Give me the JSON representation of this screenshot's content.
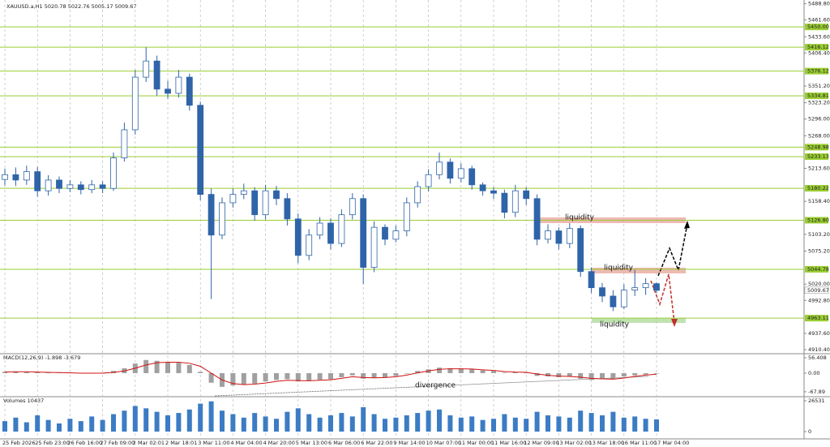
{
  "header": {
    "title": "XAUUSD.a,H1  5020.78 5022.76 5005.17 5009.67"
  },
  "chart_data": [
    {
      "type": "candlestick",
      "color": "#2f64a8",
      "x": [
        "25 Feb 2026",
        null,
        null,
        "25 Feb 23:00",
        null,
        null,
        "26 Feb 16:00",
        null,
        null,
        "27 Feb 09:00",
        null,
        null,
        "2 Mar 02:01",
        null,
        null,
        "2 Mar 18:01",
        null,
        null,
        "3 Mar 11:00",
        null,
        null,
        "4 Mar 04:00",
        null,
        null,
        "4 Mar 20:00",
        null,
        null,
        "5 Mar 13:00",
        null,
        null,
        "6 Mar 06:00",
        null,
        null,
        "6 Mar 22:00",
        null,
        null,
        "9 Mar 14:00",
        null,
        null,
        "10 Mar 07:00",
        null,
        null,
        "11 Mar 00:00",
        null,
        null,
        "11 Mar 16:00",
        null,
        null,
        "12 Mar 09:00",
        null,
        null,
        "13 Mar 02:00",
        null,
        null,
        "13 Mar 18:00",
        null,
        null,
        "16 Mar 11:00",
        null,
        null,
        "17 Mar 04:00"
      ],
      "open": [
        5195,
        5203,
        5194,
        5208,
        5176,
        5194,
        5180,
        5186,
        5178,
        5186,
        5180,
        5231,
        5278,
        5366,
        5393,
        5346,
        5339,
        5366,
        5319,
        5170,
        5102,
        5156,
        5170,
        5176,
        5136,
        5176,
        5163,
        5129,
        5068,
        5102,
        5122,
        5088,
        5136,
        5163,
        5048,
        5115,
        5095,
        5109,
        5156,
        5183,
        5203,
        5224,
        5197,
        5213,
        5186,
        5176,
        5172,
        5140,
        5176,
        5163,
        5095,
        5109,
        5088,
        5113,
        5041,
        5014,
        5000,
        4982,
        5010,
        5014,
        5020.78
      ],
      "high": [
        5213,
        5215,
        5218,
        5216,
        5202,
        5200,
        5194,
        5192,
        5194,
        5192,
        5240,
        5290,
        5378,
        5416,
        5402,
        5360,
        5378,
        5372,
        5325,
        5180,
        5165,
        5180,
        5188,
        5182,
        5186,
        5184,
        5172,
        5138,
        5112,
        5132,
        5130,
        5145,
        5172,
        5170,
        5125,
        5120,
        5118,
        5165,
        5192,
        5212,
        5240,
        5230,
        5222,
        5218,
        5190,
        5182,
        5178,
        5186,
        5182,
        5170,
        5120,
        5115,
        5122,
        5118,
        5048,
        5022,
        5010,
        5020,
        5044,
        5030,
        5022.76
      ],
      "low": [
        5185,
        5184,
        5186,
        5166,
        5168,
        5172,
        5174,
        5170,
        5172,
        5172,
        5176,
        5225,
        5270,
        5358,
        5335,
        5330,
        5332,
        5310,
        5160,
        4995,
        5095,
        5148,
        5162,
        5126,
        5128,
        5152,
        5118,
        5055,
        5060,
        5095,
        5078,
        5082,
        5128,
        5020,
        5040,
        5085,
        5090,
        5100,
        5148,
        5175,
        5195,
        5188,
        5190,
        5178,
        5168,
        5162,
        5130,
        5132,
        5152,
        5085,
        5088,
        5078,
        5080,
        5032,
        5005,
        4990,
        4975,
        4978,
        5000,
        5002,
        5005.17
      ],
      "close": [
        5203,
        5194,
        5208,
        5176,
        5194,
        5180,
        5186,
        5178,
        5186,
        5180,
        5231,
        5278,
        5366,
        5393,
        5346,
        5339,
        5366,
        5319,
        5170,
        5102,
        5156,
        5170,
        5176,
        5136,
        5176,
        5163,
        5129,
        5068,
        5102,
        5122,
        5088,
        5136,
        5163,
        5048,
        5115,
        5095,
        5109,
        5156,
        5183,
        5203,
        5224,
        5197,
        5213,
        5186,
        5176,
        5172,
        5140,
        5176,
        5163,
        5095,
        5109,
        5088,
        5113,
        5041,
        5014,
        5000,
        4982,
        5010,
        5014,
        5020.78,
        5009.67
      ],
      "ylim": [
        4905,
        5495
      ],
      "yticks": [
        {
          "value": 5488.8,
          "label": "5488.80"
        },
        {
          "value": 5461.6,
          "label": "5461.60"
        },
        {
          "value": 5433.6,
          "label": "5433.60"
        },
        {
          "value": 5406.4,
          "label": "5406.40"
        },
        {
          "value": 5351.2,
          "label": "5351.20"
        },
        {
          "value": 5323.2,
          "label": "5323.20"
        },
        {
          "value": 5296,
          "label": "5296.00"
        },
        {
          "value": 5268,
          "label": "5268.00"
        },
        {
          "value": 5213.6,
          "label": "5213.60"
        },
        {
          "value": 5158.4,
          "label": "5158.40"
        },
        {
          "value": 5103.2,
          "label": "5103.20"
        },
        {
          "value": 5075.2,
          "label": "5075.20"
        },
        {
          "value": 5020,
          "label": "5020.00"
        },
        {
          "value": 4992.8,
          "label": "4992.80"
        },
        {
          "value": 4937.6,
          "label": "4937.60"
        },
        {
          "value": 4910.4,
          "label": "4910.40"
        }
      ],
      "level_color": "#9acd32",
      "levels": [
        {
          "value": 5450,
          "label": "5450.00"
        },
        {
          "value": 5416.12,
          "label": "5416.12"
        },
        {
          "value": 5376.12,
          "label": "5376.12"
        },
        {
          "value": 5334.81,
          "label": "5334.81"
        },
        {
          "value": 5248.98,
          "label": "5248.98"
        },
        {
          "value": 5233.13,
          "label": "5233.13"
        },
        {
          "value": 5180.22,
          "label": "5180.22"
        },
        {
          "value": 5126.8,
          "label": "5126.80"
        },
        {
          "value": 5044.78,
          "label": "5044.78"
        },
        {
          "value": 4963.11,
          "label": "4963.11"
        }
      ],
      "last_price": {
        "value": 5009.67,
        "label": "5009.67"
      },
      "annotations": [
        "liquidity",
        "liquidity",
        "liquidity",
        "divergence"
      ]
    },
    {
      "type": "macd",
      "title": "MACD(12,26,9) -1.898 -3.679",
      "hist_color": "#a0a0a0",
      "signal_color": "#d01010",
      "histogram": [
        5,
        6,
        4,
        3,
        2,
        1,
        0,
        -1,
        0,
        1,
        8,
        18,
        35,
        48,
        45,
        40,
        38,
        30,
        5,
        -35,
        -50,
        -45,
        -40,
        -38,
        -30,
        -25,
        -22,
        -30,
        -28,
        -24,
        -22,
        -15,
        -8,
        -20,
        -18,
        -15,
        -10,
        -2,
        8,
        14,
        20,
        18,
        17,
        14,
        10,
        8,
        2,
        3,
        2,
        -10,
        -12,
        -15,
        -12,
        -20,
        -25,
        -22,
        -22,
        -12,
        -8,
        -5,
        -1.898
      ],
      "signal": [
        4,
        5,
        5,
        4,
        3,
        2,
        1,
        0,
        0,
        0,
        3,
        8,
        18,
        30,
        38,
        40,
        40,
        36,
        25,
        0,
        -25,
        -38,
        -42,
        -40,
        -36,
        -30,
        -26,
        -27,
        -28,
        -26,
        -24,
        -19,
        -13,
        -16,
        -17,
        -16,
        -13,
        -7,
        1,
        8,
        14,
        16,
        16,
        15,
        12,
        10,
        6,
        4,
        3,
        -3,
        -8,
        -11,
        -12,
        -15,
        -19,
        -21,
        -22,
        -18,
        -12,
        -7,
        -3.679
      ],
      "ylim": [
        -83,
        68
      ],
      "yticks": [
        56.408,
        {
          "value": 0,
          "label": "0.00"
        },
        -67.89
      ]
    },
    {
      "type": "volume",
      "title": "Volumes 10437",
      "color": "#3b7cc4",
      "values": [
        9000,
        12000,
        8000,
        14000,
        10000,
        7000,
        11000,
        9000,
        13000,
        10000,
        15000,
        18000,
        22000,
        20000,
        17000,
        14000,
        16000,
        19000,
        24000,
        26000,
        18000,
        15000,
        12000,
        16000,
        13000,
        11000,
        17000,
        20000,
        15000,
        12000,
        14000,
        16000,
        13000,
        21000,
        15000,
        11000,
        12000,
        14000,
        16000,
        18000,
        19000,
        14000,
        12000,
        13000,
        10000,
        11000,
        15000,
        12000,
        11000,
        17000,
        14000,
        13000,
        12000,
        18000,
        16000,
        14000,
        17000,
        12000,
        13000,
        11000,
        10437
      ],
      "ylim": [
        0,
        29300
      ],
      "yticks": [
        26531,
        0
      ]
    }
  ]
}
